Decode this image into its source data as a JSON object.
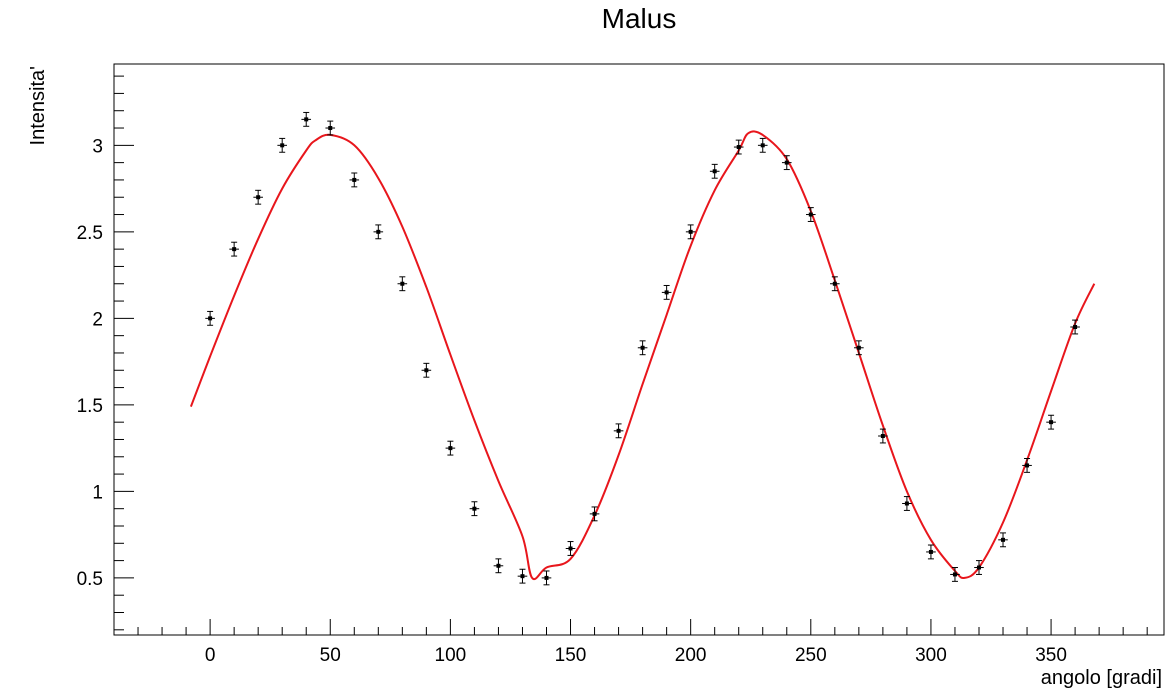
{
  "chart_data": {
    "type": "scatter",
    "title": "Malus",
    "xlabel": "angolo [gradi]",
    "ylabel": "Intensita'",
    "xlim": [
      -40,
      397
    ],
    "ylim": [
      0.17,
      3.47
    ],
    "x_ticks": [
      0,
      50,
      100,
      150,
      200,
      250,
      300,
      350
    ],
    "y_ticks": [
      0.5,
      1,
      1.5,
      2,
      2.5,
      3
    ],
    "grid": false,
    "colors": {
      "points": "#000000",
      "fit": "#e8161c",
      "frame": "#000000"
    },
    "series": [
      {
        "type": "scatter-errorbars",
        "x": [
          0,
          10,
          20,
          30,
          40,
          50,
          60,
          70,
          80,
          90,
          100,
          110,
          120,
          130,
          140,
          150,
          160,
          170,
          180,
          190,
          200,
          210,
          220,
          230,
          240,
          250,
          260,
          270,
          280,
          290,
          300,
          310,
          320,
          330,
          340,
          350,
          360
        ],
        "y": [
          2.0,
          2.4,
          2.7,
          3.0,
          3.15,
          3.1,
          2.8,
          2.5,
          2.2,
          1.7,
          1.25,
          0.9,
          0.57,
          0.51,
          0.5,
          0.67,
          0.87,
          1.35,
          1.83,
          2.15,
          2.5,
          2.85,
          2.99,
          3.0,
          2.9,
          2.6,
          2.2,
          1.83,
          1.32,
          0.93,
          0.65,
          0.52,
          0.56,
          0.72,
          1.15,
          1.4,
          1.95
        ],
        "x_err": 2,
        "y_err": 0.04
      },
      {
        "type": "fit-line",
        "x": [
          -8,
          0,
          10,
          20,
          30,
          40,
          44,
          50,
          60,
          70,
          80,
          90,
          100,
          110,
          120,
          130,
          134,
          140,
          150,
          160,
          170,
          180,
          190,
          200,
          210,
          220,
          224,
          230,
          240,
          250,
          260,
          270,
          280,
          290,
          300,
          310,
          314,
          320,
          330,
          340,
          350,
          360,
          368
        ],
        "y": [
          1.49,
          1.78,
          2.13,
          2.46,
          2.75,
          2.97,
          3.03,
          3.06,
          3.0,
          2.81,
          2.53,
          2.18,
          1.79,
          1.41,
          1.06,
          0.74,
          0.5,
          0.56,
          0.61,
          0.86,
          1.21,
          1.62,
          2.02,
          2.42,
          2.74,
          2.97,
          3.07,
          3.06,
          2.92,
          2.62,
          2.22,
          1.8,
          1.38,
          1.0,
          0.72,
          0.54,
          0.5,
          0.56,
          0.82,
          1.18,
          1.58,
          1.97,
          2.2
        ]
      }
    ]
  }
}
